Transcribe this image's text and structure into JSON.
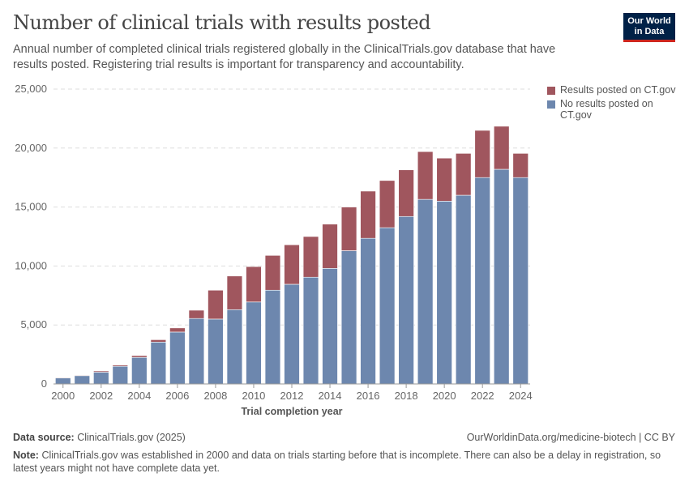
{
  "header": {
    "title": "Number of clinical trials with results posted",
    "subtitle": "Annual number of completed clinical trials registered globally in the ClinicalTrials.gov database that have results posted. Registering trial results is important for transparency and accountability.",
    "logo": "Our World in Data"
  },
  "chart_data": {
    "type": "bar",
    "stacked": true,
    "xlabel": "Trial completion year",
    "ylabel": "",
    "ylim": [
      0,
      25000
    ],
    "yticks": [
      "0",
      "5,000",
      "10,000",
      "15,000",
      "20,000",
      "25,000"
    ],
    "ytick_values": [
      0,
      5000,
      10000,
      15000,
      20000,
      25000
    ],
    "xticks": [
      "2000",
      "2002",
      "2004",
      "2006",
      "2008",
      "2010",
      "2012",
      "2014",
      "2016",
      "2018",
      "2020",
      "2022",
      "2024"
    ],
    "categories": [
      2000,
      2001,
      2002,
      2003,
      2004,
      2005,
      2006,
      2007,
      2008,
      2009,
      2010,
      2011,
      2012,
      2013,
      2014,
      2015,
      2016,
      2017,
      2018,
      2019,
      2020,
      2021,
      2022,
      2023,
      2024
    ],
    "grid": true,
    "legend": "right",
    "series": [
      {
        "name": "No results posted on CT.gov",
        "color": "#6d87ae",
        "values": [
          500,
          700,
          1000,
          1500,
          2250,
          3550,
          4400,
          5550,
          5500,
          6300,
          6950,
          7950,
          8450,
          9050,
          9800,
          11300,
          12350,
          13250,
          14200,
          15650,
          15500,
          16000,
          17500,
          18200,
          17500
        ]
      },
      {
        "name": "Results posted on CT.gov",
        "color": "#a0565e",
        "values": [
          50,
          50,
          100,
          100,
          150,
          200,
          350,
          700,
          2450,
          2850,
          3000,
          2950,
          3350,
          3450,
          3750,
          3700,
          4000,
          4000,
          3950,
          4050,
          3650,
          3550,
          4000,
          3650,
          2050
        ]
      }
    ]
  },
  "footer": {
    "source_label": "Data source:",
    "source": "ClinicalTrials.gov (2025)",
    "url": "OurWorldinData.org/medicine-biotech | CC BY",
    "note_label": "Note:",
    "note": "ClinicalTrials.gov was established in 2000 and data on trials starting before that is incomplete. There can also be a delay in registration, so latest years might not have complete data yet."
  }
}
